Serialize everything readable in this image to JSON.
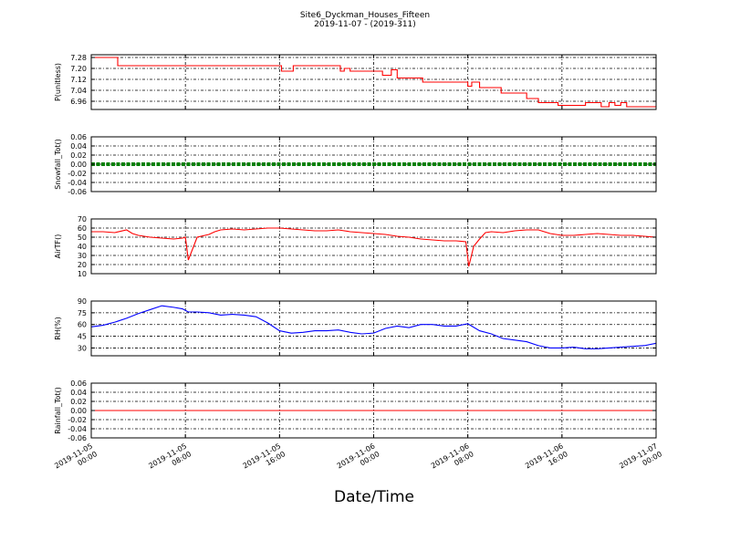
{
  "title": "Site6_Dyckman_Houses_Fifteen",
  "subtitle": "2019-11-07 - (2019-311)",
  "xlabel": "Date/Time",
  "x_ticks": [
    {
      "line1": "2019-11-05",
      "line2": "00:00"
    },
    {
      "line1": "2019-11-05",
      "line2": "08:00"
    },
    {
      "line1": "2019-11-05",
      "line2": "16:00"
    },
    {
      "line1": "2019-11-06",
      "line2": "00:00"
    },
    {
      "line1": "2019-11-06",
      "line2": "08:00"
    },
    {
      "line1": "2019-11-06",
      "line2": "16:00"
    },
    {
      "line1": "2019-11-07",
      "line2": "00:00"
    }
  ],
  "chart_data": [
    {
      "type": "line",
      "ylabel": "P(unitless)",
      "ylim": [
        6.9,
        7.3
      ],
      "yticks": [
        "7.28",
        "7.20",
        "7.12",
        "7.04",
        "6.96"
      ],
      "ytick_values": [
        7.28,
        7.2,
        7.12,
        7.04,
        6.96
      ],
      "grid": true,
      "series": [
        {
          "color": "#ff0000",
          "step": true,
          "x": [
            "2019-11-05 00:00",
            "2019-11-05 02:00",
            "2019-11-05 02:15",
            "2019-11-05 16:00",
            "2019-11-05 16:10",
            "2019-11-05 17:00",
            "2019-11-05 17:10",
            "2019-11-05 21:00",
            "2019-11-05 21:10",
            "2019-11-05 21:30",
            "2019-11-05 22:00",
            "2019-11-06 00:00",
            "2019-11-06 00:45",
            "2019-11-06 01:30",
            "2019-11-06 02:00",
            "2019-11-06 04:00",
            "2019-11-06 04:10",
            "2019-11-06 07:50",
            "2019-11-06 08:00",
            "2019-11-06 08:20",
            "2019-11-06 09:00",
            "2019-11-06 10:40",
            "2019-11-06 10:50",
            "2019-11-06 12:20",
            "2019-11-06 13:00",
            "2019-11-06 14:00",
            "2019-11-06 15:00",
            "2019-11-06 15:40",
            "2019-11-06 17:50",
            "2019-11-06 18:00",
            "2019-11-06 19:20",
            "2019-11-06 20:00",
            "2019-11-06 20:30",
            "2019-11-06 21:00",
            "2019-11-06 21:30",
            "2019-11-06 22:00",
            "2019-11-07 00:00"
          ],
          "values": [
            7.28,
            7.28,
            7.22,
            7.22,
            7.18,
            7.18,
            7.22,
            7.22,
            7.18,
            7.2,
            7.18,
            7.18,
            7.15,
            7.19,
            7.13,
            7.13,
            7.1,
            7.1,
            7.07,
            7.1,
            7.06,
            7.06,
            7.02,
            7.02,
            6.98,
            6.95,
            6.95,
            6.93,
            6.93,
            6.95,
            6.92,
            6.95,
            6.93,
            6.95,
            6.92,
            6.92,
            6.92
          ]
        }
      ]
    },
    {
      "type": "scatter",
      "ylabel": "Snowfall_Tot()",
      "ylim": [
        -0.06,
        0.06
      ],
      "yticks": [
        "0.06",
        "0.04",
        "0.02",
        "0.00",
        "-0.02",
        "-0.04",
        "-0.06"
      ],
      "ytick_values": [
        0.06,
        0.04,
        0.02,
        0.0,
        -0.02,
        -0.04,
        -0.06
      ],
      "grid": true,
      "series": [
        {
          "color": "#008000",
          "constant": true,
          "x": [
            "2019-11-05 00:00",
            "2019-11-07 00:00"
          ],
          "values": [
            0,
            0
          ]
        }
      ]
    },
    {
      "type": "line",
      "ylabel": "AirTF()",
      "ylim": [
        10,
        70
      ],
      "yticks": [
        "70",
        "60",
        "50",
        "40",
        "30",
        "20",
        "10"
      ],
      "ytick_values": [
        70,
        60,
        50,
        40,
        30,
        20,
        10
      ],
      "grid": true,
      "series": [
        {
          "color": "#ff0000",
          "x": [
            "2019-11-05 00:00",
            "2019-11-05 01:00",
            "2019-11-05 02:00",
            "2019-11-05 03:00",
            "2019-11-05 03:30",
            "2019-11-05 04:00",
            "2019-11-05 05:00",
            "2019-11-05 06:00",
            "2019-11-05 07:00",
            "2019-11-05 07:45",
            "2019-11-05 08:00",
            "2019-11-05 08:15",
            "2019-11-05 09:00",
            "2019-11-05 10:00",
            "2019-11-05 10:30",
            "2019-11-05 11:00",
            "2019-11-05 12:00",
            "2019-11-05 13:00",
            "2019-11-05 14:00",
            "2019-11-05 15:00",
            "2019-11-05 16:00",
            "2019-11-05 17:00",
            "2019-11-05 18:00",
            "2019-11-05 19:00",
            "2019-11-05 20:00",
            "2019-11-05 21:00",
            "2019-11-05 22:00",
            "2019-11-05 23:00",
            "2019-11-06 00:00",
            "2019-11-06 01:00",
            "2019-11-06 02:00",
            "2019-11-06 03:00",
            "2019-11-06 04:00",
            "2019-11-06 05:00",
            "2019-11-06 06:00",
            "2019-11-06 07:00",
            "2019-11-06 07:50",
            "2019-11-06 08:05",
            "2019-11-06 08:30",
            "2019-11-06 09:00",
            "2019-11-06 09:30",
            "2019-11-06 10:00",
            "2019-11-06 11:00",
            "2019-11-06 12:00",
            "2019-11-06 13:00",
            "2019-11-06 14:00",
            "2019-11-06 15:00",
            "2019-11-06 16:00",
            "2019-11-06 17:00",
            "2019-11-06 18:00",
            "2019-11-06 19:00",
            "2019-11-06 20:00",
            "2019-11-06 21:00",
            "2019-11-06 22:00",
            "2019-11-06 23:00",
            "2019-11-07 00:00"
          ],
          "values": [
            56,
            56,
            55,
            58,
            54,
            52,
            50,
            49,
            48,
            49,
            50,
            25,
            50,
            53,
            56,
            58,
            59,
            58,
            59,
            60,
            60,
            59,
            58,
            57,
            57,
            58,
            56,
            55,
            54,
            53,
            51,
            50,
            48,
            47,
            46,
            46,
            45,
            18,
            40,
            48,
            55,
            56,
            55,
            57,
            58,
            58,
            54,
            52,
            52,
            53,
            54,
            53,
            52,
            52,
            51,
            50
          ]
        }
      ]
    },
    {
      "type": "line",
      "ylabel": "RH(%)",
      "ylim": [
        20,
        90
      ],
      "yticks": [
        "90",
        "75",
        "60",
        "45",
        "30"
      ],
      "ytick_values": [
        90,
        75,
        60,
        45,
        30
      ],
      "grid": true,
      "series": [
        {
          "color": "#0000ff",
          "x": [
            "2019-11-05 00:00",
            "2019-11-05 01:00",
            "2019-11-05 02:00",
            "2019-11-05 03:00",
            "2019-11-05 04:00",
            "2019-11-05 05:00",
            "2019-11-05 06:00",
            "2019-11-05 07:00",
            "2019-11-05 07:45",
            "2019-11-05 08:15",
            "2019-11-05 09:00",
            "2019-11-05 10:00",
            "2019-11-05 11:00",
            "2019-11-05 12:00",
            "2019-11-05 13:00",
            "2019-11-05 14:00",
            "2019-11-05 15:00",
            "2019-11-05 16:00",
            "2019-11-05 17:00",
            "2019-11-05 18:00",
            "2019-11-05 19:00",
            "2019-11-05 20:00",
            "2019-11-05 21:00",
            "2019-11-05 22:00",
            "2019-11-05 23:00",
            "2019-11-06 00:00",
            "2019-11-06 01:00",
            "2019-11-06 02:00",
            "2019-11-06 03:00",
            "2019-11-06 04:00",
            "2019-11-06 05:00",
            "2019-11-06 06:00",
            "2019-11-06 07:00",
            "2019-11-06 08:00",
            "2019-11-06 09:00",
            "2019-11-06 10:00",
            "2019-11-06 11:00",
            "2019-11-06 12:00",
            "2019-11-06 13:00",
            "2019-11-06 14:00",
            "2019-11-06 15:00",
            "2019-11-06 16:00",
            "2019-11-06 17:00",
            "2019-11-06 18:00",
            "2019-11-06 19:00",
            "2019-11-06 20:00",
            "2019-11-06 21:00",
            "2019-11-06 22:00",
            "2019-11-06 23:00",
            "2019-11-07 00:00"
          ],
          "values": [
            57,
            59,
            63,
            68,
            74,
            79,
            84,
            82,
            80,
            76,
            76,
            75,
            72,
            73,
            72,
            70,
            62,
            52,
            49,
            50,
            52,
            52,
            53,
            50,
            48,
            49,
            55,
            58,
            56,
            60,
            60,
            58,
            58,
            61,
            52,
            48,
            42,
            40,
            38,
            33,
            30,
            30,
            31,
            29,
            29,
            30,
            31,
            32,
            33,
            36
          ]
        }
      ]
    },
    {
      "type": "line",
      "ylabel": "Rainfall_Tot()",
      "ylim": [
        -0.06,
        0.06
      ],
      "yticks": [
        "0.06",
        "0.04",
        "0.02",
        "0.00",
        "-0.02",
        "-0.04",
        "-0.06"
      ],
      "ytick_values": [
        0.06,
        0.04,
        0.02,
        0.0,
        -0.02,
        -0.04,
        -0.06
      ],
      "grid": true,
      "series": [
        {
          "color": "#ff0000",
          "x": [
            "2019-11-05 00:00",
            "2019-11-07 00:00"
          ],
          "values": [
            0,
            0
          ]
        }
      ]
    }
  ]
}
